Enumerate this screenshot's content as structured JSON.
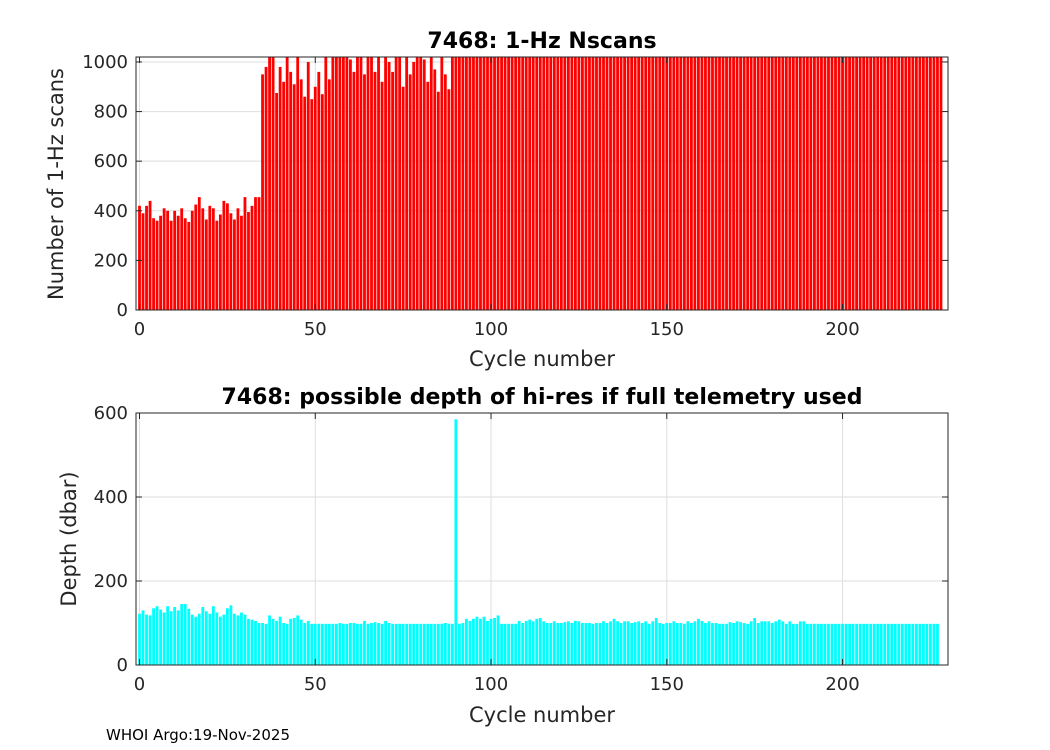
{
  "footer": "WHOI Argo:19-Nov-2025",
  "chart_data": [
    {
      "type": "bar",
      "title": "7468: 1-Hz Nscans",
      "xlabel": "Cycle number",
      "ylabel": "Number of 1-Hz scans",
      "xlim": [
        -1,
        230
      ],
      "ylim": [
        0,
        1020
      ],
      "xticks": [
        0,
        50,
        100,
        150,
        200
      ],
      "yticks": [
        0,
        200,
        400,
        600,
        800,
        1000
      ],
      "grid": true,
      "color": "#ff0000",
      "x_start": 0,
      "values": [
        420,
        390,
        420,
        440,
        370,
        360,
        380,
        410,
        400,
        360,
        400,
        380,
        410,
        370,
        355,
        400,
        425,
        455,
        410,
        365,
        420,
        410,
        360,
        385,
        440,
        430,
        390,
        365,
        410,
        380,
        455,
        395,
        420,
        455,
        455,
        950,
        980,
        1020,
        1020,
        875,
        980,
        920,
        1020,
        960,
        910,
        1020,
        930,
        860,
        1000,
        850,
        900,
        960,
        870,
        1020,
        930,
        1020,
        1020,
        1020,
        1020,
        1020,
        1010,
        960,
        1020,
        1020,
        950,
        1020,
        1020,
        960,
        1020,
        920,
        1020,
        1000,
        960,
        1020,
        1020,
        900,
        1020,
        950,
        1000,
        1020,
        1020,
        1010,
        920,
        1020,
        970,
        880,
        1020,
        950,
        890,
        1020,
        1020,
        1020,
        1020,
        1020,
        1020,
        1020,
        1020,
        1020,
        1020,
        1020,
        1020,
        1020,
        1020,
        1020,
        1020,
        1020,
        1020,
        1020,
        1020,
        1020,
        1020,
        1020,
        1020,
        1020,
        1020,
        1020,
        1020,
        1020,
        1020,
        1020,
        1020,
        1020,
        1020,
        1020,
        1020,
        1020,
        1020,
        1020,
        1020,
        1020,
        1020,
        1020,
        1020,
        1020,
        1020,
        1020,
        1020,
        1020,
        1020,
        1020,
        1020,
        1020,
        1020,
        1020,
        1020,
        1020,
        1020,
        1020,
        1020,
        1020,
        1020,
        1020,
        1020,
        1020,
        1020,
        1020,
        1020,
        1020,
        1020,
        1020,
        1020,
        1020,
        1020,
        1020,
        1020,
        1020,
        1020,
        1020,
        1020,
        1020,
        1020,
        1020,
        1020,
        1020,
        1020,
        1020,
        1020,
        1020,
        1020,
        1020,
        1020,
        1020,
        1020,
        1020,
        1020,
        1020,
        1020,
        1020,
        1020,
        1020,
        1020,
        1020,
        1020,
        1020,
        1020,
        1020,
        1020,
        1020,
        1020,
        1020,
        1020,
        1020,
        1020,
        1020,
        1020,
        1020,
        1020,
        1020,
        1020,
        1020,
        1020,
        1020,
        1020,
        1020,
        1020,
        1020,
        1020,
        1020,
        1020,
        1020,
        1020,
        1020,
        1020,
        1020,
        1020,
        1020,
        1020,
        1020,
        1020
      ]
    },
    {
      "type": "bar",
      "title": "7468: possible depth of hi-res if full telemetry used",
      "xlabel": "Cycle number",
      "ylabel": "Depth (dbar)",
      "xlim": [
        -1,
        230
      ],
      "ylim": [
        0,
        600
      ],
      "xticks": [
        0,
        50,
        100,
        150,
        200
      ],
      "yticks": [
        0,
        200,
        400,
        600
      ],
      "grid": true,
      "color": "#00ffff",
      "x_start": 0,
      "values": [
        122,
        130,
        120,
        118,
        135,
        140,
        132,
        125,
        140,
        128,
        138,
        130,
        145,
        145,
        134,
        120,
        115,
        122,
        138,
        128,
        122,
        140,
        125,
        115,
        120,
        135,
        142,
        122,
        118,
        125,
        120,
        110,
        108,
        105,
        100,
        100,
        98,
        118,
        110,
        105,
        115,
        100,
        98,
        110,
        112,
        118,
        108,
        100,
        105,
        98,
        98,
        98,
        98,
        98,
        98,
        98,
        98,
        100,
        98,
        98,
        100,
        100,
        98,
        98,
        105,
        98,
        100,
        102,
        100,
        98,
        105,
        100,
        98,
        98,
        98,
        98,
        98,
        98,
        98,
        98,
        98,
        98,
        98,
        98,
        98,
        98,
        98,
        100,
        98,
        98,
        585,
        98,
        100,
        110,
        105,
        110,
        115,
        110,
        115,
        105,
        110,
        112,
        118,
        98,
        98,
        98,
        98,
        98,
        105,
        100,
        105,
        108,
        104,
        110,
        112,
        104,
        100,
        100,
        104,
        100,
        100,
        102,
        104,
        100,
        105,
        104,
        100,
        100,
        100,
        98,
        100,
        100,
        104,
        100,
        104,
        110,
        104,
        100,
        104,
        104,
        100,
        102,
        104,
        100,
        104,
        98,
        104,
        112,
        100,
        98,
        100,
        100,
        104,
        100,
        100,
        98,
        104,
        100,
        104,
        110,
        105,
        100,
        104,
        100,
        100,
        98,
        98,
        98,
        102,
        100,
        104,
        102,
        100,
        98,
        104,
        112,
        100,
        104,
        104,
        104,
        100,
        104,
        108,
        104,
        98,
        104,
        98,
        98,
        104,
        104,
        98,
        98,
        98,
        98,
        98,
        98,
        98,
        98,
        98,
        98,
        98,
        98,
        98,
        98,
        98,
        98,
        98,
        98,
        98,
        98,
        98,
        98,
        98,
        98,
        98,
        98,
        98,
        98,
        98,
        98,
        98,
        98,
        98,
        98,
        98,
        98,
        98,
        98
      ]
    }
  ]
}
